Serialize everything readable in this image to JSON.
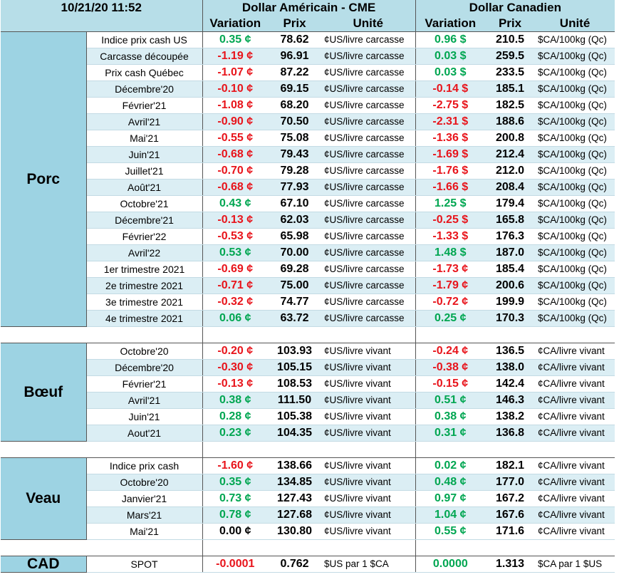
{
  "header": {
    "timestamp": "10/21/20 11:52",
    "groups": [
      "Dollar Américain - CME",
      "Dollar Canadien"
    ],
    "columns": [
      "Variation",
      "Prix",
      "Unité",
      "Variation",
      "Prix",
      "Unité"
    ]
  },
  "sections": [
    {
      "name": "Porc",
      "rows": [
        {
          "cells": [
            "Indice prix cash US",
            "0.35 ¢",
            "78.62",
            "¢US/livre carcasse",
            "0.96 $",
            "210.5",
            "$CA/100kg (Qc)"
          ],
          "colors": [
            "#00a651",
            "#00a651"
          ]
        },
        {
          "cells": [
            "Carcasse découpée",
            "-1.19 ¢",
            "96.91",
            "¢US/livre carcasse",
            "0.03 $",
            "259.5",
            "$CA/100kg (Qc)"
          ],
          "colors": [
            "#e8141b",
            "#00a651"
          ]
        },
        {
          "cells": [
            "Prix cash Québec",
            "-1.07 ¢",
            "87.22",
            "¢US/livre carcasse",
            "0.03 $",
            "233.5",
            "$CA/100kg (Qc)"
          ],
          "colors": [
            "#e8141b",
            "#00a651"
          ]
        },
        {
          "cells": [
            "Décembre'20",
            "-0.10 ¢",
            "69.15",
            "¢US/livre carcasse",
            "-0.14 $",
            "185.1",
            "$CA/100kg (Qc)"
          ],
          "colors": [
            "#e8141b",
            "#e8141b"
          ]
        },
        {
          "cells": [
            "Février'21",
            "-1.08 ¢",
            "68.20",
            "¢US/livre carcasse",
            "-2.75 $",
            "182.5",
            "$CA/100kg (Qc)"
          ],
          "colors": [
            "#e8141b",
            "#e8141b"
          ]
        },
        {
          "cells": [
            "Avril'21",
            "-0.90 ¢",
            "70.50",
            "¢US/livre carcasse",
            "-2.31 $",
            "188.6",
            "$CA/100kg (Qc)"
          ],
          "colors": [
            "#e8141b",
            "#e8141b"
          ]
        },
        {
          "cells": [
            "Mai'21",
            "-0.55 ¢",
            "75.08",
            "¢US/livre carcasse",
            "-1.36 $",
            "200.8",
            "$CA/100kg (Qc)"
          ],
          "colors": [
            "#e8141b",
            "#e8141b"
          ]
        },
        {
          "cells": [
            "Juin'21",
            "-0.68 ¢",
            "79.43",
            "¢US/livre carcasse",
            "-1.69 $",
            "212.4",
            "$CA/100kg (Qc)"
          ],
          "colors": [
            "#e8141b",
            "#e8141b"
          ]
        },
        {
          "cells": [
            "Juillet'21",
            "-0.70 ¢",
            "79.28",
            "¢US/livre carcasse",
            "-1.76 $",
            "212.0",
            "$CA/100kg (Qc)"
          ],
          "colors": [
            "#e8141b",
            "#e8141b"
          ]
        },
        {
          "cells": [
            "Août'21",
            "-0.68 ¢",
            "77.93",
            "¢US/livre carcasse",
            "-1.66 $",
            "208.4",
            "$CA/100kg (Qc)"
          ],
          "colors": [
            "#e8141b",
            "#e8141b"
          ]
        },
        {
          "cells": [
            "Octobre'21",
            "0.43 ¢",
            "67.10",
            "¢US/livre carcasse",
            "1.25 $",
            "179.4",
            "$CA/100kg (Qc)"
          ],
          "colors": [
            "#00a651",
            "#00a651"
          ]
        },
        {
          "cells": [
            "Décembre'21",
            "-0.13 ¢",
            "62.03",
            "¢US/livre carcasse",
            "-0.25 $",
            "165.8",
            "$CA/100kg (Qc)"
          ],
          "colors": [
            "#e8141b",
            "#e8141b"
          ]
        },
        {
          "cells": [
            "Février'22",
            "-0.53 ¢",
            "65.98",
            "¢US/livre carcasse",
            "-1.33 $",
            "176.3",
            "$CA/100kg (Qc)"
          ],
          "colors": [
            "#e8141b",
            "#e8141b"
          ]
        },
        {
          "cells": [
            "Avril'22",
            "0.53 ¢",
            "70.00",
            "¢US/livre carcasse",
            "1.48 $",
            "187.0",
            "$CA/100kg (Qc)"
          ],
          "colors": [
            "#00a651",
            "#00a651"
          ]
        },
        {
          "cells": [
            "1er trimestre 2021",
            "-0.69 ¢",
            "69.28",
            "¢US/livre carcasse",
            "-1.73 ¢",
            "185.4",
            "$CA/100kg (Qc)"
          ],
          "colors": [
            "#e8141b",
            "#e8141b"
          ]
        },
        {
          "cells": [
            "2e trimestre 2021",
            "-0.71 ¢",
            "75.00",
            "¢US/livre carcasse",
            "-1.79 ¢",
            "200.6",
            "$CA/100kg (Qc)"
          ],
          "colors": [
            "#e8141b",
            "#e8141b"
          ]
        },
        {
          "cells": [
            "3e trimestre 2021",
            "-0.32 ¢",
            "74.77",
            "¢US/livre carcasse",
            "-0.72 ¢",
            "199.9",
            "$CA/100kg (Qc)"
          ],
          "colors": [
            "#e8141b",
            "#e8141b"
          ]
        },
        {
          "cells": [
            "4e trimestre 2021",
            "0.06 ¢",
            "63.72",
            "¢US/livre carcasse",
            "0.25 ¢",
            "170.3",
            "$CA/100kg (Qc)"
          ],
          "colors": [
            "#00a651",
            "#00a651"
          ]
        }
      ]
    },
    {
      "name": "Bœuf",
      "rows": [
        {
          "cells": [
            "Octobre'20",
            "-0.20 ¢",
            "103.93",
            "¢US/livre vivant",
            "-0.24 ¢",
            "136.5",
            "¢CA/livre vivant"
          ],
          "colors": [
            "#e8141b",
            "#e8141b"
          ]
        },
        {
          "cells": [
            "Décembre'20",
            "-0.30 ¢",
            "105.15",
            "¢US/livre vivant",
            "-0.38 ¢",
            "138.0",
            "¢CA/livre vivant"
          ],
          "colors": [
            "#e8141b",
            "#e8141b"
          ]
        },
        {
          "cells": [
            "Février'21",
            "-0.13 ¢",
            "108.53",
            "¢US/livre vivant",
            "-0.15 ¢",
            "142.4",
            "¢CA/livre vivant"
          ],
          "colors": [
            "#e8141b",
            "#e8141b"
          ]
        },
        {
          "cells": [
            "Avril'21",
            "0.38 ¢",
            "111.50",
            "¢US/livre vivant",
            "0.51 ¢",
            "146.3",
            "¢CA/livre vivant"
          ],
          "colors": [
            "#00a651",
            "#00a651"
          ]
        },
        {
          "cells": [
            "Juin'21",
            "0.28 ¢",
            "105.38",
            "¢US/livre vivant",
            "0.38 ¢",
            "138.2",
            "¢CA/livre vivant"
          ],
          "colors": [
            "#00a651",
            "#00a651"
          ]
        },
        {
          "cells": [
            "Aout'21",
            "0.23 ¢",
            "104.35",
            "¢US/livre vivant",
            "0.31 ¢",
            "136.8",
            "¢CA/livre vivant"
          ],
          "colors": [
            "#00a651",
            "#00a651"
          ]
        }
      ]
    },
    {
      "name": "Veau",
      "rows": [
        {
          "cells": [
            "Indice prix cash",
            "-1.60 ¢",
            "138.66",
            "¢US/livre vivant",
            "0.02 ¢",
            "182.1",
            "¢CA/livre vivant"
          ],
          "colors": [
            "#e8141b",
            "#00a651"
          ]
        },
        {
          "cells": [
            "Octobre'20",
            "0.35 ¢",
            "134.85",
            "¢US/livre vivant",
            "0.48 ¢",
            "177.0",
            "¢CA/livre vivant"
          ],
          "colors": [
            "#00a651",
            "#00a651"
          ]
        },
        {
          "cells": [
            "Janvier'21",
            "0.73 ¢",
            "127.43",
            "¢US/livre vivant",
            "0.97 ¢",
            "167.2",
            "¢CA/livre vivant"
          ],
          "colors": [
            "#00a651",
            "#00a651"
          ]
        },
        {
          "cells": [
            "Mars'21",
            "0.78 ¢",
            "127.68",
            "¢US/livre vivant",
            "1.04 ¢",
            "167.6",
            "¢CA/livre vivant"
          ],
          "colors": [
            "#00a651",
            "#00a651"
          ]
        },
        {
          "cells": [
            "Mai'21",
            "0.00 ¢",
            "130.80",
            "¢US/livre vivant",
            "0.55 ¢",
            "171.6",
            "¢CA/livre vivant"
          ],
          "colors": [
            "#000000",
            "#00a651"
          ]
        }
      ]
    },
    {
      "name": "CAD",
      "rows": [
        {
          "cells": [
            "SPOT",
            "-0.0001",
            "0.762",
            "$US par 1 $CA",
            "0.0000",
            "1.313",
            "$CA par 1 $US"
          ],
          "colors": [
            "#e8141b",
            "#00a651"
          ]
        }
      ]
    }
  ]
}
